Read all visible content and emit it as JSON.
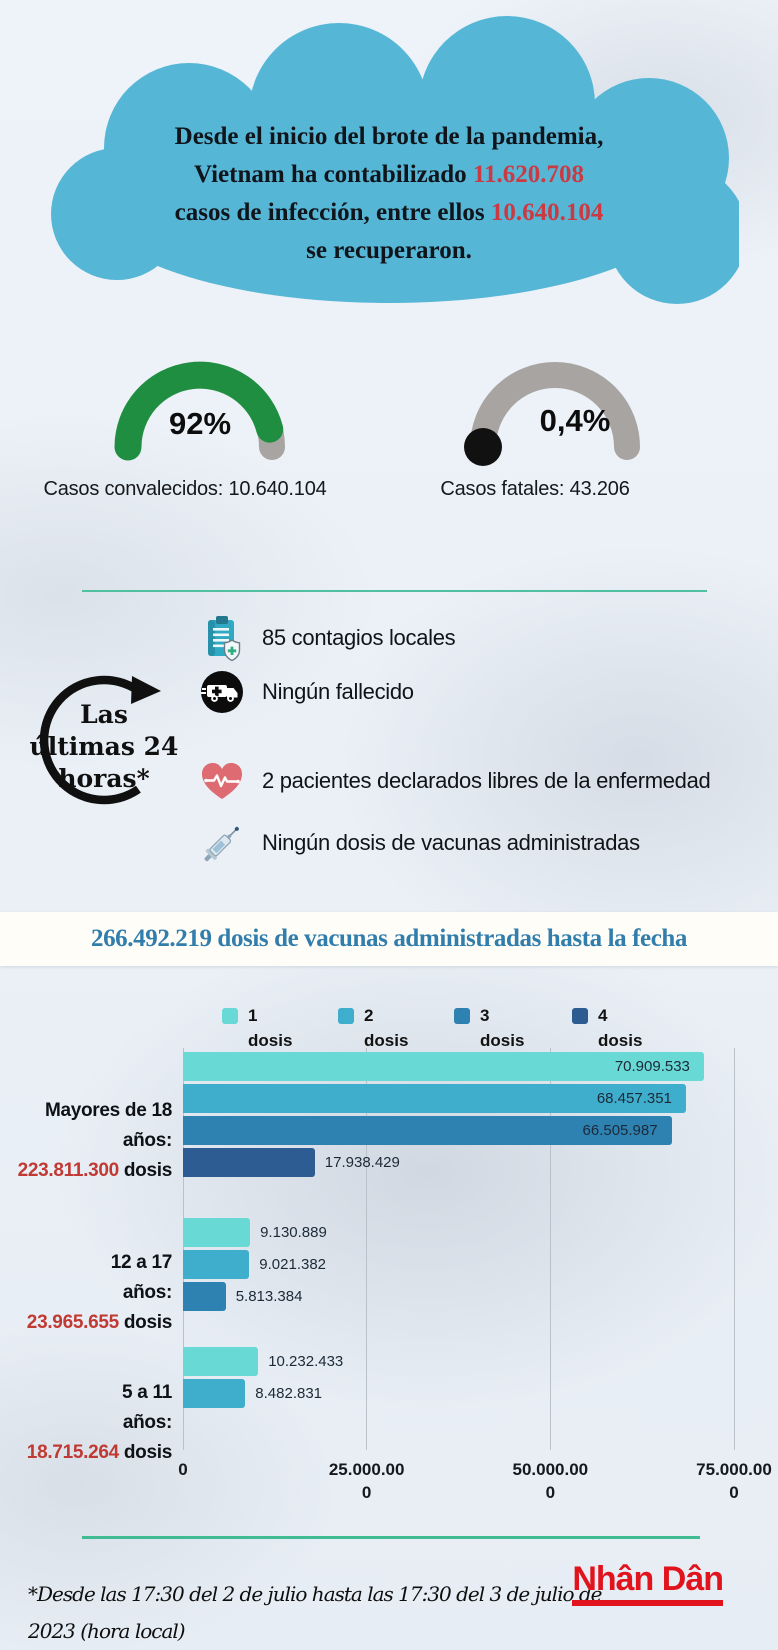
{
  "background_color": "#e9eef5",
  "cloud": {
    "color": "#56b6d6",
    "accent_color": "#cb3a43",
    "line1": "Desde el inicio del brote de la pandemia,",
    "line2_pre": "Vietnam ha contabilizado ",
    "line2_num": "11.620.708",
    "line3_pre": "casos de infección, entre ellos ",
    "line3_num": "10.640.104",
    "line4": "se recuperaron."
  },
  "gauges": [
    {
      "value_text": "92%",
      "percent": 92,
      "arc_color": "#1f8e41",
      "track_color": "#a7a4a1",
      "label": "Casos convalecidos: 10.640.104"
    },
    {
      "value_text": "0,4%",
      "percent": 0.4,
      "arc_color": "#111111",
      "track_color": "#a7a4a1",
      "label": "Casos fatales: 43.206"
    }
  ],
  "last24": {
    "title_line1": "Las",
    "title_line2": "últimas 24",
    "title_line3": "horas*",
    "items": [
      {
        "icon": "clipboard-shield-icon",
        "text": "85 contagios locales"
      },
      {
        "icon": "ambulance-icon",
        "text": "Ningún fallecido"
      },
      {
        "icon": "heart-pulse-icon",
        "text": "2 pacientes declarados libres de la enfermedad"
      },
      {
        "icon": "syringe-icon",
        "text": "Ningún dosis de vacunas administradas"
      }
    ]
  },
  "headline": {
    "text": "266.492.219 dosis de vacunas administradas hasta la fecha",
    "color": "#317dab",
    "band_color": "#fefdf8"
  },
  "chart_data": {
    "type": "bar",
    "orientation": "horizontal",
    "title": "266.492.219 dosis de vacunas administradas hasta la fecha",
    "xlim": [
      0,
      75000000
    ],
    "grid_color": "#b9c1cb",
    "total_color": "#c03a33",
    "legend_position": "top",
    "x_ticks": [
      {
        "value": 0,
        "line1": "0",
        "line2": ""
      },
      {
        "value": 25000000,
        "line1": "25.000.00",
        "line2": "0"
      },
      {
        "value": 50000000,
        "line1": "50.000.00",
        "line2": "0"
      },
      {
        "value": 75000000,
        "line1": "75.000.00",
        "line2": "0"
      }
    ],
    "legend": [
      {
        "num": "1",
        "word": "dosis",
        "color": "#68d9d4"
      },
      {
        "num": "2",
        "word": "dosis",
        "color": "#3fadcc"
      },
      {
        "num": "3",
        "word": "dosis",
        "color": "#2e82b2"
      },
      {
        "num": "4",
        "word": "dosis",
        "color": "#2d5c92"
      }
    ],
    "groups": [
      {
        "label_line1": "Mayores de 18",
        "label_line2": "años:",
        "total": "223.811.300",
        "total_suffix": " dosis",
        "bars": [
          {
            "series": "1 dosis",
            "value": 70909533,
            "label": "70.909.533"
          },
          {
            "series": "2 dosis",
            "value": 68457351,
            "label": "68.457.351"
          },
          {
            "series": "3 dosis",
            "value": 66505987,
            "label": "66.505.987"
          },
          {
            "series": "4 dosis",
            "value": 17938429,
            "label": "17.938.429"
          }
        ]
      },
      {
        "label_line1": "12 a 17",
        "label_line2": "años:",
        "total": "23.965.655",
        "total_suffix": " dosis",
        "bars": [
          {
            "series": "1 dosis",
            "value": 9130889,
            "label": "9.130.889"
          },
          {
            "series": "2 dosis",
            "value": 9021382,
            "label": "9.021.382"
          },
          {
            "series": "3 dosis",
            "value": 5813384,
            "label": "5.813.384"
          }
        ]
      },
      {
        "label_line1": "5 a 11",
        "label_line2": "años:",
        "total": "18.715.264",
        "total_suffix": " dosis",
        "bars": [
          {
            "series": "1 dosis",
            "value": 10232433,
            "label": "10.232.433"
          },
          {
            "series": "2 dosis",
            "value": 8482831,
            "label": "8.482.831"
          }
        ]
      }
    ]
  },
  "dividers": {
    "top_color": "#4fc0a0",
    "bottom_color": "#3fbc92"
  },
  "footnote": {
    "line1": "*Desde las 17:30 del 2 de julio hasta las 17:30 del 3 de julio de",
    "line2": "2023 (hora local)"
  },
  "logo": {
    "text": "Nhân Dân",
    "color": "#e1131c"
  }
}
